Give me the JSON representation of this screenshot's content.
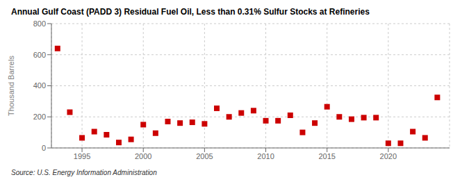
{
  "chart_data": {
    "type": "scatter",
    "title": "Annual Gulf Coast (PADD 3) Residual Fuel Oil, Less than 0.31% Sulfur Stocks at Refineries",
    "ylabel": "Thousand Barrels",
    "source": "Source: U.S. Energy Information Administration",
    "x": [
      1993,
      1994,
      1995,
      1996,
      1997,
      1998,
      1999,
      2000,
      2001,
      2002,
      2003,
      2004,
      2005,
      2006,
      2007,
      2008,
      2009,
      2010,
      2011,
      2012,
      2013,
      2014,
      2015,
      2016,
      2017,
      2018,
      2019,
      2020,
      2021,
      2022,
      2023,
      2024
    ],
    "values": [
      640,
      230,
      65,
      105,
      85,
      35,
      55,
      150,
      95,
      170,
      160,
      165,
      155,
      255,
      200,
      225,
      240,
      175,
      175,
      210,
      100,
      160,
      265,
      200,
      185,
      195,
      195,
      30,
      30,
      105,
      65,
      325
    ],
    "color": "#cc0000",
    "marker": "square",
    "xlim": [
      1992.5,
      2025
    ],
    "xticks": [
      1995,
      2000,
      2005,
      2010,
      2015,
      2020
    ],
    "ylim": [
      0,
      800
    ],
    "yticks": [
      0,
      200,
      400,
      600,
      800
    ],
    "grid": true
  }
}
